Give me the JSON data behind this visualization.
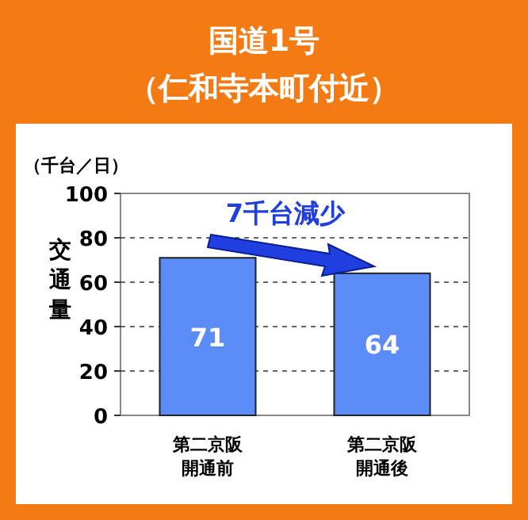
{
  "chart_data": {
    "type": "bar",
    "title": "国道1号（仁和寺本町付近）",
    "ylabel": "交通量",
    "annotations": [
      "（千台／日）",
      "7千台減少"
    ],
    "categories": [
      "第二京阪開通前",
      "第二京阪開通後"
    ],
    "values": [
      71,
      64
    ],
    "color": "#5b8cf5",
    "data_labels": true,
    "ylim": [
      0,
      100
    ],
    "yticks": [
      0,
      20,
      40,
      60,
      80,
      100
    ],
    "grid": "y"
  }
}
